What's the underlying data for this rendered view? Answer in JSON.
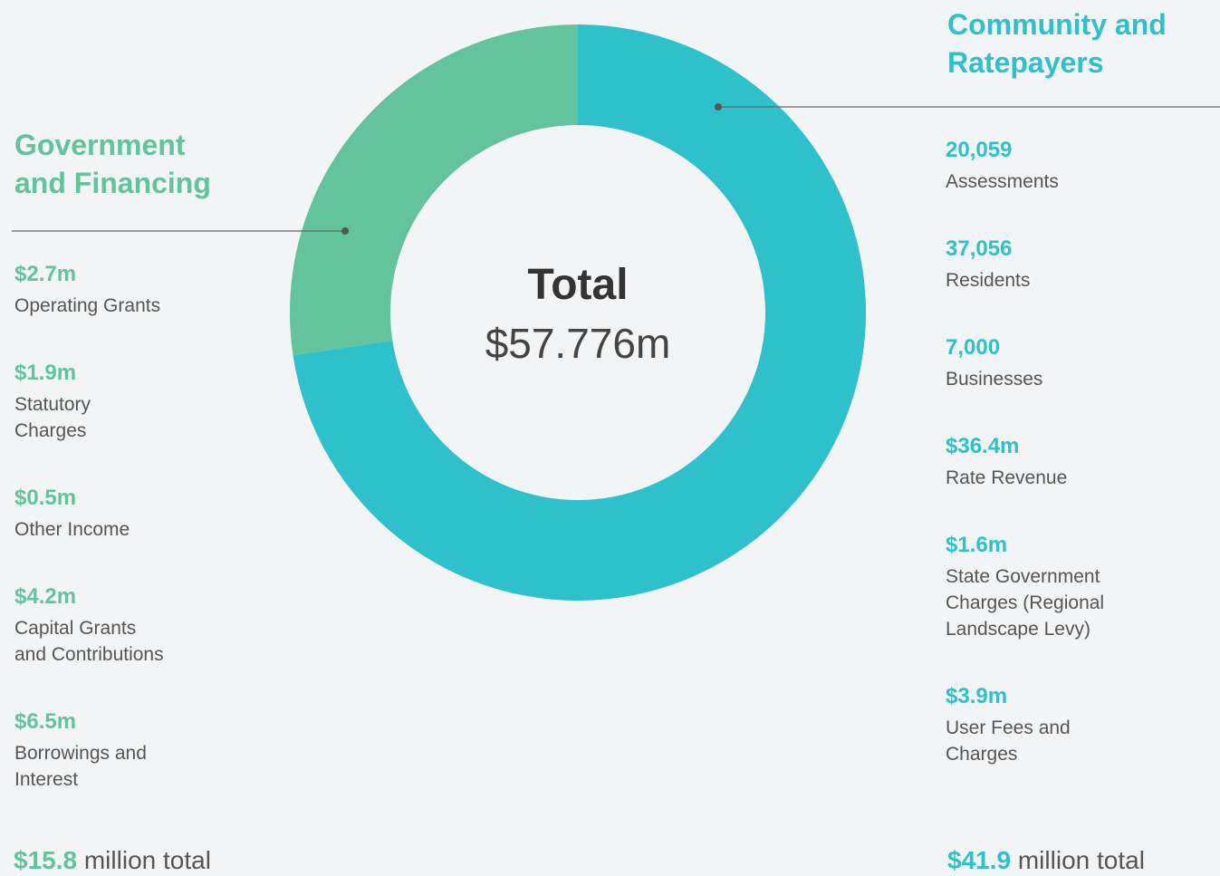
{
  "chart_data": {
    "type": "donut",
    "center_title": "Total",
    "center_value": "$57.776m",
    "categories": [
      "Government\nand Financing",
      "Community and\nRatepayers"
    ],
    "values": [
      15.8,
      41.9
    ],
    "value_labels": [
      "$15.8",
      "$41.9"
    ],
    "total_suffix": "million total",
    "colors": [
      "#62c39c",
      "#2ec0cb"
    ]
  },
  "left_items": [
    {
      "value": "$2.7m",
      "label": "Operating Grants"
    },
    {
      "value": "$1.9m",
      "label": "Statutory\nCharges"
    },
    {
      "value": "$0.5m",
      "label": "Other Income"
    },
    {
      "value": "$4.2m",
      "label": "Capital Grants\nand Contributions"
    },
    {
      "value": "$6.5m",
      "label": "Borrowings and\nInterest"
    }
  ],
  "right_items": [
    {
      "value": "20,059",
      "label": " Assessments"
    },
    {
      "value": "37,056",
      "label": "Residents"
    },
    {
      "value": "7,000",
      "label": "Businesses"
    },
    {
      "value": "$36.4m",
      "label": "Rate Revenue"
    },
    {
      "value": "$1.6m",
      "label": "State Government\nCharges (Regional\nLandscape Levy)"
    },
    {
      "value": "$3.9m",
      "label": "User Fees and\nCharges"
    }
  ]
}
